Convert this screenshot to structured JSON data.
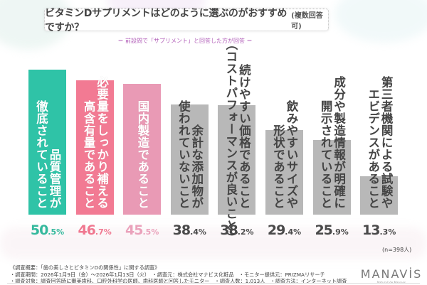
{
  "title": {
    "main": "ビタミンDサプリメントはどのように選ぶのがおすすめですか？",
    "note": "(複数回答可)"
  },
  "subtitle": "＝ 前設問で「サプリメント」と回答した方が回答 ＝",
  "chart_data": {
    "type": "bar",
    "categories": [
      [
        "品質管理が",
        "徹底されていること"
      ],
      [
        "必要量をしっかり補える",
        "高含有量であること"
      ],
      [
        "国内製造であること"
      ],
      [
        "余計な添加物が",
        "使われていないこと"
      ],
      [
        "続けやすい価格であること",
        "（コストパフォーマンスが良いこと）"
      ],
      [
        "飲みやすいサイズや",
        "形状であること"
      ],
      [
        "成分や製造情報が明確に",
        "開示されていること"
      ],
      [
        "第三者機関による試験や",
        "エビデンスがあること"
      ]
    ],
    "values": [
      50.5,
      46.7,
      45.5,
      38.4,
      38.2,
      29.4,
      25.9,
      13.3
    ],
    "unit": "%",
    "bar_colors": [
      "#2fc3a7",
      "#f27a93",
      "#e99ab5",
      "#b8b8b8",
      "#b8b8b8",
      "#b8b8b8",
      "#b8b8b8",
      "#b8b8b8"
    ],
    "label_colors": [
      "#ffffff",
      "#ffffff",
      "#ffffff",
      "#444444",
      "#444444",
      "#444444",
      "#444444",
      "#444444"
    ],
    "value_colors": [
      "#35b99d",
      "#f07890",
      "#eaa2bb",
      "#4a4a4a",
      "#4a4a4a",
      "#4a4a4a",
      "#4a4a4a",
      "#4a4a4a"
    ],
    "ylim": [
      0,
      55
    ],
    "grid": false,
    "legend": "none"
  },
  "sample_note": "(n=398人)",
  "footer": [
    "《調査概要：「歯の美しさとビタミンDの関係性」に関する調査》",
    "・調査期間：2026年1月9日（金）～2026年1月13日（火）　・調査元：株式会社マナビス化粧品　・モニター提供元：PRIZMAリサーチ",
    "・調査対象：調査回答時に審美歯科、口腔外科学の医師、歯科医師と回答したモニター　・調査人数：1,013人　・調査方法：インターネット調査"
  ],
  "logo": {
    "main": "MANAVİS",
    "sub": "Natural Vie Manavis"
  }
}
